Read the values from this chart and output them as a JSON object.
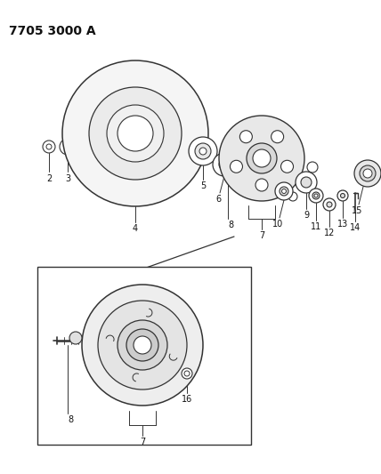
{
  "title": "7705 3000 A",
  "bg_color": "#ffffff",
  "line_color": "#333333",
  "text_color": "#111111",
  "title_fontsize": 10,
  "label_fontsize": 7,
  "figsize": [
    4.28,
    5.33
  ],
  "dpi": 100
}
